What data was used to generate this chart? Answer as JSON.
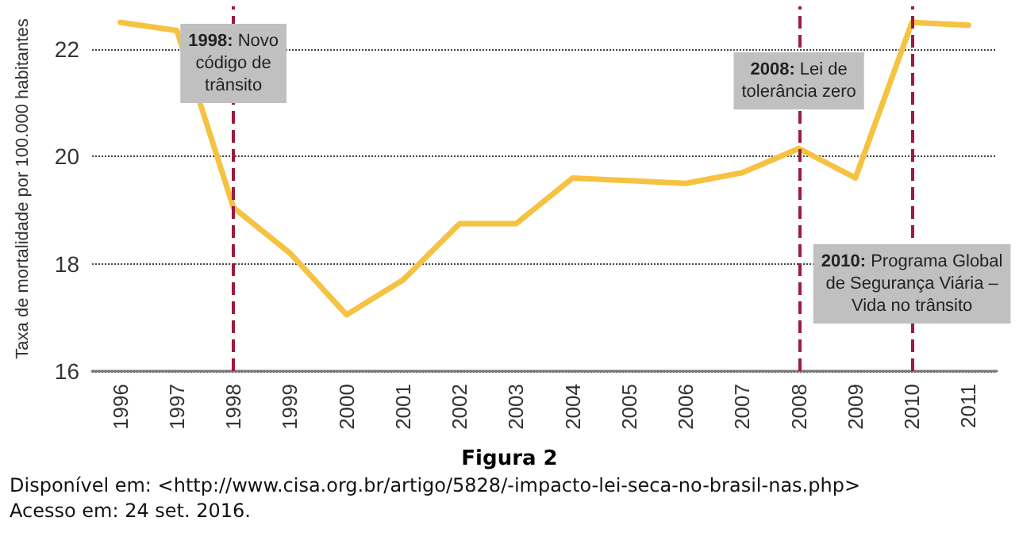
{
  "chart_data": {
    "type": "line",
    "title": "Figura 2",
    "ylabel": "Taxa de mortalidade por 100.000 habitantes",
    "categories": [
      "1996",
      "1997",
      "1998",
      "1999",
      "2000",
      "2001",
      "2002",
      "2003",
      "2004",
      "2005",
      "2006",
      "2007",
      "2008",
      "2009",
      "2010",
      "2011"
    ],
    "series": [
      {
        "color": "#f5c242",
        "values": [
          22.5,
          22.35,
          19.05,
          18.2,
          17.05,
          17.7,
          18.75,
          18.75,
          19.6,
          19.55,
          19.5,
          19.7,
          20.15,
          19.6,
          22.5,
          22.45
        ]
      }
    ],
    "ylim": [
      16,
      22.8
    ],
    "yticks": [
      16,
      18,
      20,
      22
    ],
    "grid": "y",
    "marker": "none",
    "line_style": "solid",
    "ref_lines": [
      {
        "axis": "x",
        "value": "1998",
        "label": "1998: Novo código de trânsito",
        "color": "#9b1c3c",
        "line_style": "dashed"
      },
      {
        "axis": "x",
        "value": "2008",
        "label": "2008: Lei de tolerância zero",
        "color": "#9b1c3c",
        "line_style": "dashed"
      },
      {
        "axis": "x",
        "value": "2010",
        "label": "2010: Programa Global de Segurança Viária – Vida no trânsito",
        "color": "#9b1c3c",
        "line_style": "dashed"
      }
    ],
    "annotations": [
      "Disponível em: <http://www.cisa.org.br/artigo/5828/-impacto-lei-seca-no-brasil-nas.php>",
      "Acesso em: 24 set. 2016."
    ]
  }
}
